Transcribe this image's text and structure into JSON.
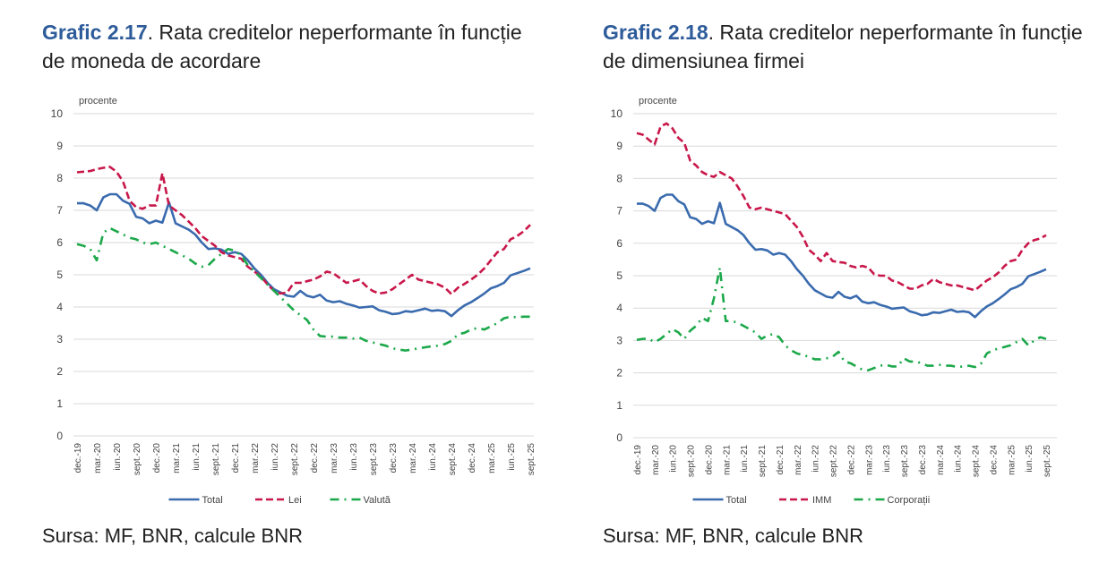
{
  "colors": {
    "title_accent": "#2E5C9A",
    "total": "#3A6BAE",
    "red": "#C8174A",
    "green": "#1BA84A",
    "grid": "#D9D9D9"
  },
  "charts": [
    {
      "title_bold": "Grafic 2.17",
      "title_rest": ". Rata creditelor neperformante în funcție de moneda de acordare",
      "source": "Sursa: MF, BNR, calcule BNR"
    },
    {
      "title_bold": "Grafic 2.18",
      "title_rest": ".  Rata creditelor neperformante în funcție de dimensiunea firmei",
      "source": "Sursa: MF, BNR, calcule BNR"
    }
  ],
  "chart_data": [
    {
      "type": "line",
      "ylabel": "procente",
      "ylim": [
        0,
        10
      ],
      "yticks": [
        0,
        1,
        2,
        3,
        4,
        5,
        6,
        7,
        8,
        9,
        10
      ],
      "grid": true,
      "legend": "bottom",
      "x_start": "dec.-19",
      "x_end": "sept.-25",
      "frequency": "monthly",
      "xtick_labels": [
        "dec.-19",
        "mar.-20",
        "iun.-20",
        "sept.-20",
        "dec.-20",
        "mar.-21",
        "iun.-21",
        "sept.-21",
        "dec.-21",
        "mar.-22",
        "iun.-22",
        "sept.-22",
        "dec.-22",
        "mar.-23",
        "iun.-23",
        "sept.-23",
        "dec.-23",
        "mar.-24",
        "iun.-24",
        "sept.-24",
        "dec.-24",
        "mar.-25",
        "iun.-25",
        "sept.-25"
      ],
      "series": [
        {
          "name": "Total",
          "style": "solid",
          "values": [
            7.22,
            7.22,
            7.15,
            7.0,
            7.4,
            7.5,
            7.5,
            7.3,
            7.2,
            6.8,
            6.75,
            6.6,
            6.68,
            6.62,
            7.25,
            6.6,
            6.5,
            6.4,
            6.25,
            6.0,
            5.8,
            5.82,
            5.78,
            5.65,
            5.7,
            5.65,
            5.45,
            5.2,
            5.0,
            4.75,
            4.55,
            4.45,
            4.35,
            4.32,
            4.5,
            4.35,
            4.3,
            4.38,
            4.2,
            4.15,
            4.18,
            4.1,
            4.05,
            3.98,
            4.0,
            4.02,
            3.9,
            3.85,
            3.78,
            3.8,
            3.87,
            3.85,
            3.9,
            3.95,
            3.88,
            3.9,
            3.87,
            3.72,
            3.9,
            4.05,
            4.15,
            4.28,
            4.42,
            4.58,
            4.65,
            4.75,
            4.98,
            5.05,
            5.12,
            5.2
          ]
        },
        {
          "name": "Lei",
          "style": "dashed",
          "values": [
            8.18,
            8.2,
            8.22,
            8.28,
            8.32,
            8.35,
            8.2,
            7.9,
            7.3,
            7.1,
            7.05,
            7.15,
            7.15,
            8.15,
            7.15,
            7.0,
            6.85,
            6.65,
            6.45,
            6.2,
            6.05,
            5.9,
            5.7,
            5.6,
            5.55,
            5.5,
            5.25,
            5.1,
            4.95,
            4.7,
            4.5,
            4.42,
            4.45,
            4.75,
            4.75,
            4.8,
            4.85,
            4.95,
            5.1,
            5.05,
            4.9,
            4.75,
            4.8,
            4.85,
            4.65,
            4.5,
            4.42,
            4.45,
            4.55,
            4.7,
            4.85,
            5.0,
            4.85,
            4.8,
            4.75,
            4.7,
            4.6,
            4.4,
            4.6,
            4.72,
            4.85,
            5.0,
            5.2,
            5.45,
            5.7,
            5.8,
            6.1,
            6.2,
            6.35,
            6.55
          ]
        },
        {
          "name": "Valută",
          "style": "dashdot",
          "values": [
            5.95,
            5.9,
            5.8,
            5.45,
            6.3,
            6.45,
            6.35,
            6.25,
            6.15,
            6.1,
            6.0,
            5.95,
            6.0,
            5.9,
            5.8,
            5.7,
            5.6,
            5.5,
            5.35,
            5.25,
            5.3,
            5.5,
            5.65,
            5.8,
            5.75,
            5.6,
            5.3,
            5.1,
            4.9,
            4.7,
            4.5,
            4.3,
            4.1,
            3.9,
            3.75,
            3.6,
            3.3,
            3.1,
            3.08,
            3.08,
            3.05,
            3.05,
            3.02,
            3.05,
            2.95,
            2.9,
            2.85,
            2.8,
            2.72,
            2.68,
            2.65,
            2.68,
            2.72,
            2.75,
            2.78,
            2.8,
            2.85,
            2.95,
            3.15,
            3.2,
            3.3,
            3.35,
            3.3,
            3.4,
            3.5,
            3.65,
            3.7,
            3.68,
            3.7,
            3.7
          ]
        }
      ]
    },
    {
      "type": "line",
      "ylabel": "procente",
      "ylim": [
        0,
        10
      ],
      "yticks": [
        0,
        1,
        2,
        3,
        4,
        5,
        6,
        7,
        8,
        9,
        10
      ],
      "grid": true,
      "legend": "bottom",
      "x_start": "dec.-19",
      "x_end": "sept.-25",
      "frequency": "monthly",
      "xtick_labels": [
        "dec.-19",
        "mar.-20",
        "iun.-20",
        "sept.-20",
        "dec.-20",
        "mar.-21",
        "iun.-21",
        "sept.-21",
        "dec.-21",
        "mar.-22",
        "iun.-22",
        "sept.-22",
        "dec.-22",
        "mar.-23",
        "iun.-23",
        "sept.-23",
        "dec.-23",
        "mar.-24",
        "iun.-24",
        "sept.-24",
        "dec.-24",
        "mar.-25",
        "iun.-25",
        "sept.-25"
      ],
      "series": [
        {
          "name": "Total",
          "style": "solid",
          "values": [
            7.22,
            7.22,
            7.15,
            7.0,
            7.4,
            7.5,
            7.5,
            7.3,
            7.2,
            6.8,
            6.75,
            6.6,
            6.68,
            6.62,
            7.25,
            6.6,
            6.5,
            6.4,
            6.25,
            6.0,
            5.8,
            5.82,
            5.78,
            5.65,
            5.7,
            5.65,
            5.45,
            5.2,
            5.0,
            4.75,
            4.55,
            4.45,
            4.35,
            4.32,
            4.5,
            4.35,
            4.3,
            4.38,
            4.2,
            4.15,
            4.18,
            4.1,
            4.05,
            3.98,
            4.0,
            4.02,
            3.9,
            3.85,
            3.78,
            3.8,
            3.87,
            3.85,
            3.9,
            3.95,
            3.88,
            3.9,
            3.87,
            3.72,
            3.9,
            4.05,
            4.15,
            4.28,
            4.42,
            4.58,
            4.65,
            4.75,
            4.98,
            5.05,
            5.12,
            5.2
          ]
        },
        {
          "name": "IMM",
          "style": "dashed",
          "values": [
            9.4,
            9.35,
            9.2,
            9.05,
            9.6,
            9.7,
            9.55,
            9.25,
            9.1,
            8.55,
            8.4,
            8.2,
            8.1,
            8.05,
            8.2,
            8.1,
            8.0,
            7.75,
            7.45,
            7.1,
            7.05,
            7.1,
            7.05,
            7.0,
            6.95,
            6.9,
            6.7,
            6.5,
            6.2,
            5.8,
            5.65,
            5.45,
            5.7,
            5.45,
            5.42,
            5.4,
            5.3,
            5.25,
            5.3,
            5.25,
            5.05,
            5.0,
            5.0,
            4.85,
            4.8,
            4.7,
            4.6,
            4.6,
            4.7,
            4.75,
            4.9,
            4.8,
            4.75,
            4.7,
            4.7,
            4.65,
            4.6,
            4.55,
            4.7,
            4.85,
            4.95,
            5.1,
            5.3,
            5.45,
            5.5,
            5.8,
            6.0,
            6.1,
            6.15,
            6.25
          ]
        },
        {
          "name": "Corporații",
          "style": "dashdot",
          "values": [
            3.02,
            3.05,
            3.05,
            2.95,
            3.05,
            3.2,
            3.35,
            3.25,
            3.05,
            3.3,
            3.45,
            3.7,
            3.6,
            4.3,
            5.25,
            3.6,
            3.6,
            3.55,
            3.45,
            3.35,
            3.25,
            3.05,
            3.15,
            3.2,
            3.1,
            2.85,
            2.7,
            2.6,
            2.55,
            2.5,
            2.42,
            2.42,
            2.45,
            2.5,
            2.65,
            2.35,
            2.3,
            2.2,
            2.1,
            2.08,
            2.15,
            2.22,
            2.25,
            2.2,
            2.2,
            2.45,
            2.35,
            2.35,
            2.3,
            2.22,
            2.22,
            2.25,
            2.22,
            2.22,
            2.18,
            2.2,
            2.22,
            2.18,
            2.28,
            2.6,
            2.7,
            2.75,
            2.8,
            2.85,
            2.95,
            3.05,
            2.85,
            3.0,
            3.1,
            3.05
          ]
        }
      ]
    }
  ]
}
